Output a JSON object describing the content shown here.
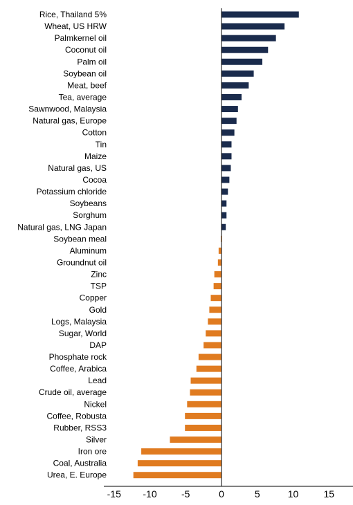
{
  "chart_data": {
    "type": "bar",
    "orientation": "horizontal",
    "title": "",
    "xlabel": "",
    "ylabel": "",
    "xlim": [
      -15,
      15
    ],
    "xticks": [
      -15,
      -10,
      -5,
      0,
      5,
      10,
      15
    ],
    "grid": false,
    "colors": {
      "positive": "#1a2b4c",
      "negative": "#e07b20",
      "axis": "#000000"
    },
    "categories": [
      "Rice, Thailand 5%",
      "Wheat, US HRW",
      "Palmkernel oil",
      "Coconut oil",
      "Palm oil",
      "Soybean oil",
      "Meat, beef",
      "Tea, average",
      "Sawnwood, Malaysia",
      "Natural gas, Europe",
      "Cotton",
      "Tin",
      "Maize",
      "Natural gas, US",
      "Cocoa",
      "Potassium chloride",
      "Soybeans",
      "Sorghum",
      "Natural gas, LNG Japan",
      "Soybean meal",
      "Aluminum",
      "Groundnut oil",
      "Zinc",
      "TSP",
      "Copper",
      "Gold",
      "Logs, Malaysia",
      "Sugar, World",
      "DAP",
      "Phosphate rock",
      "Coffee, Arabica",
      "Lead",
      "Crude oil, average",
      "Nickel",
      "Coffee, Robusta",
      "Rubber, RSS3",
      "Silver",
      "Iron ore",
      "Coal, Australia",
      "Urea, E. Europe"
    ],
    "values": [
      10.8,
      8.8,
      7.6,
      6.5,
      5.7,
      4.5,
      3.8,
      2.8,
      2.3,
      2.1,
      1.8,
      1.4,
      1.4,
      1.3,
      1.1,
      0.9,
      0.7,
      0.7,
      0.6,
      -0.1,
      -0.4,
      -0.5,
      -1.0,
      -1.1,
      -1.5,
      -1.7,
      -1.9,
      -2.2,
      -2.5,
      -3.2,
      -3.5,
      -4.3,
      -4.4,
      -4.8,
      -5.1,
      -5.1,
      -7.2,
      -11.2,
      -11.7,
      -12.3
    ]
  }
}
